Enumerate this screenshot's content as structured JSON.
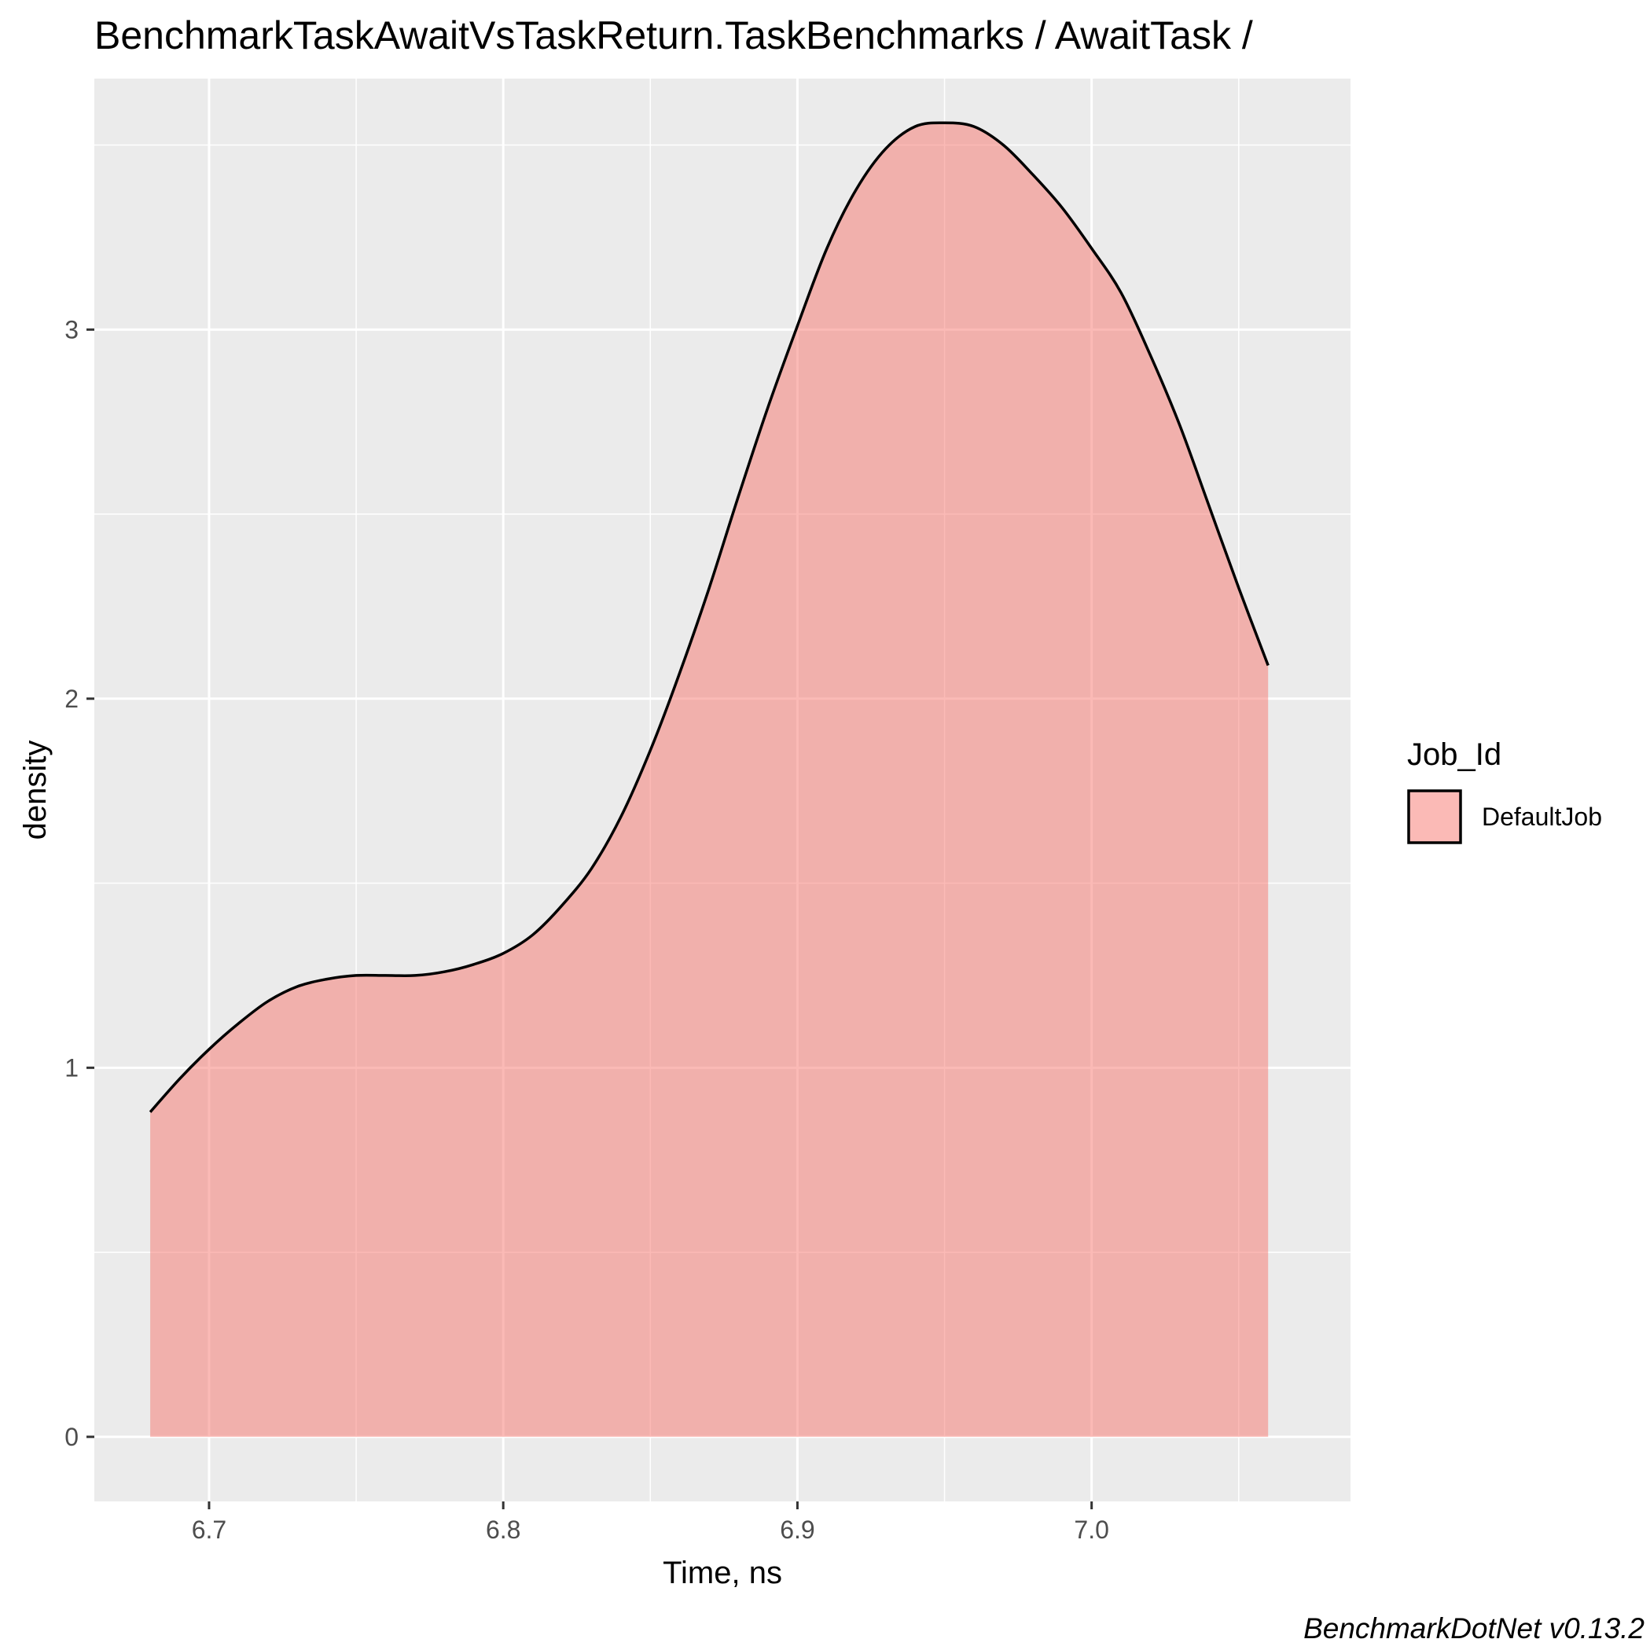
{
  "chart_data": {
    "type": "area",
    "title": "BenchmarkTaskAwaitVsTaskReturn.TaskBenchmarks / AwaitTask /",
    "xlabel": "Time, ns",
    "ylabel": "density",
    "xlim": [
      6.661,
      7.088
    ],
    "ylim": [
      -0.175,
      3.68
    ],
    "x_ticks": [
      6.7,
      6.8,
      6.9,
      7.0
    ],
    "x_tick_labels": [
      "6.7",
      "6.8",
      "6.9",
      "7.0"
    ],
    "y_ticks": [
      0,
      1,
      2,
      3
    ],
    "y_tick_labels": [
      "0",
      "1",
      "2",
      "3"
    ],
    "grid": true,
    "legend": {
      "title": "Job_Id",
      "placement": "right",
      "entries": [
        "DefaultJob"
      ]
    },
    "caption": "BenchmarkDotNet v0.13.2",
    "series": [
      {
        "name": "DefaultJob",
        "fill": "#F8766D",
        "fill_opacity": 0.5,
        "line_color": "#000000",
        "x": [
          6.68,
          6.69,
          6.7,
          6.71,
          6.72,
          6.73,
          6.74,
          6.75,
          6.76,
          6.77,
          6.78,
          6.79,
          6.8,
          6.81,
          6.82,
          6.83,
          6.84,
          6.85,
          6.86,
          6.87,
          6.88,
          6.89,
          6.9,
          6.91,
          6.92,
          6.93,
          6.94,
          6.95,
          6.96,
          6.97,
          6.98,
          6.99,
          7.0,
          7.01,
          7.02,
          7.03,
          7.04,
          7.05,
          7.06
        ],
        "y": [
          0.88,
          0.97,
          1.05,
          1.12,
          1.18,
          1.22,
          1.24,
          1.25,
          1.25,
          1.25,
          1.26,
          1.28,
          1.31,
          1.36,
          1.44,
          1.54,
          1.68,
          1.86,
          2.07,
          2.3,
          2.55,
          2.79,
          3.01,
          3.22,
          3.38,
          3.49,
          3.55,
          3.56,
          3.55,
          3.5,
          3.42,
          3.33,
          3.22,
          3.1,
          2.93,
          2.74,
          2.52,
          2.3,
          2.09
        ]
      }
    ]
  }
}
